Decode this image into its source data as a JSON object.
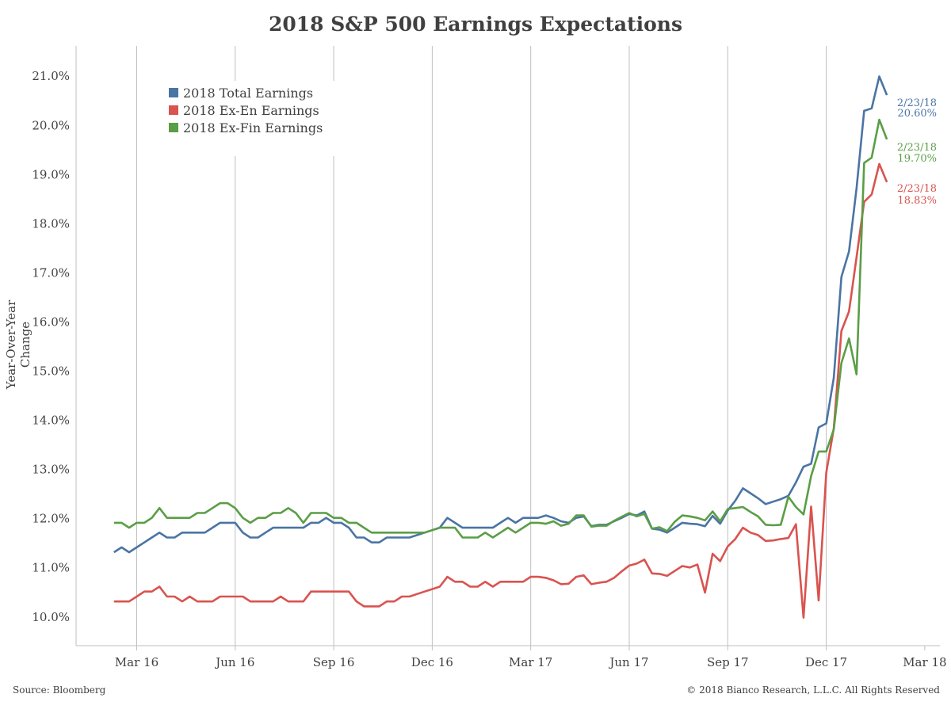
{
  "title": "2018 S&P 500 Earnings Expectations",
  "ylabel": "Year-Over-Year Change",
  "source": "Source: Bloomberg",
  "copyright": "© 2018 Bianco Research, L.L.C. All Rights Reserved",
  "colors": {
    "total": "#4a74a4",
    "exen": "#d9534f",
    "exfin": "#5a9e46"
  },
  "chart_data": {
    "type": "line",
    "ylim": [
      9.4,
      21.6
    ],
    "y_ticks": [
      "10.0%",
      "11.0%",
      "12.0%",
      "13.0%",
      "14.0%",
      "15.0%",
      "16.0%",
      "17.0%",
      "18.0%",
      "19.0%",
      "20.0%",
      "21.0%"
    ],
    "y_tick_values": [
      10,
      11,
      12,
      13,
      14,
      15,
      16,
      17,
      18,
      19,
      20,
      21
    ],
    "x_ticks": [
      "Mar 16",
      "Jun 16",
      "Sep 16",
      "Dec 16",
      "Mar 17",
      "Jun 17",
      "Sep 17",
      "Dec 17",
      "Mar 18"
    ],
    "x_tick_values": [
      0,
      13,
      26,
      39,
      52,
      65,
      78,
      91,
      104
    ],
    "xlim": [
      -8,
      106
    ],
    "grid": "vertical",
    "legend_placement": "top-left",
    "x_step": "weekly",
    "series": [
      {
        "name": "2018 Total Earnings",
        "color_key": "total",
        "end_label_date": "2/23/18",
        "end_label_value": "20.60%",
        "points": [
          [
            -3,
            11.3
          ],
          [
            -2,
            11.4
          ],
          [
            -1,
            11.3
          ],
          [
            0,
            11.4
          ],
          [
            1,
            11.5
          ],
          [
            2,
            11.6
          ],
          [
            3,
            11.7
          ],
          [
            4,
            11.6
          ],
          [
            5,
            11.6
          ],
          [
            6,
            11.7
          ],
          [
            7,
            11.7
          ],
          [
            8,
            11.7
          ],
          [
            9,
            11.7
          ],
          [
            10,
            11.8
          ],
          [
            11,
            11.9
          ],
          [
            12,
            11.9
          ],
          [
            13,
            11.9
          ],
          [
            14,
            11.7
          ],
          [
            15,
            11.6
          ],
          [
            16,
            11.6
          ],
          [
            17,
            11.7
          ],
          [
            18,
            11.8
          ],
          [
            19,
            11.8
          ],
          [
            20,
            11.8
          ],
          [
            21,
            11.8
          ],
          [
            22,
            11.8
          ],
          [
            23,
            11.9
          ],
          [
            24,
            11.9
          ],
          [
            25,
            12.0
          ],
          [
            26,
            11.9
          ],
          [
            27,
            11.9
          ],
          [
            28,
            11.8
          ],
          [
            29,
            11.6
          ],
          [
            30,
            11.6
          ],
          [
            31,
            11.5
          ],
          [
            32,
            11.5
          ],
          [
            33,
            11.6
          ],
          [
            34,
            11.6
          ],
          [
            35,
            11.6
          ],
          [
            36,
            11.6
          ],
          [
            37,
            11.65
          ],
          [
            38,
            11.7
          ],
          [
            39,
            11.75
          ],
          [
            40,
            11.8
          ],
          [
            41,
            12.0
          ],
          [
            42,
            11.9
          ],
          [
            43,
            11.8
          ],
          [
            44,
            11.8
          ],
          [
            45,
            11.8
          ],
          [
            46,
            11.8
          ],
          [
            47,
            11.8
          ],
          [
            48,
            11.9
          ],
          [
            49,
            12.0
          ],
          [
            50,
            11.9
          ],
          [
            51,
            12.0
          ],
          [
            52,
            12.0
          ],
          [
            53,
            12.0
          ],
          [
            54,
            12.05
          ],
          [
            55,
            12.0
          ],
          [
            56,
            11.93
          ],
          [
            57,
            11.9
          ],
          [
            58,
            12.0
          ],
          [
            59,
            12.03
          ],
          [
            60,
            11.83
          ],
          [
            61,
            11.86
          ],
          [
            62,
            11.86
          ],
          [
            63,
            11.93
          ],
          [
            64,
            12.0
          ],
          [
            65,
            12.08
          ],
          [
            66,
            12.05
          ],
          [
            67,
            12.13
          ],
          [
            68,
            11.78
          ],
          [
            69,
            11.76
          ],
          [
            70,
            11.7
          ],
          [
            71,
            11.8
          ],
          [
            72,
            11.9
          ],
          [
            73,
            11.88
          ],
          [
            74,
            11.87
          ],
          [
            75,
            11.83
          ],
          [
            76,
            12.04
          ],
          [
            77,
            11.88
          ],
          [
            78,
            12.15
          ],
          [
            79,
            12.35
          ],
          [
            80,
            12.6
          ],
          [
            81,
            12.5
          ],
          [
            82,
            12.4
          ],
          [
            83,
            12.28
          ],
          [
            84,
            12.33
          ],
          [
            85,
            12.38
          ],
          [
            86,
            12.45
          ],
          [
            87,
            12.72
          ],
          [
            88,
            13.04
          ],
          [
            89,
            13.1
          ],
          [
            90,
            13.84
          ],
          [
            91,
            13.92
          ],
          [
            92,
            14.85
          ],
          [
            93,
            16.9
          ],
          [
            94,
            17.42
          ],
          [
            95,
            18.7
          ],
          [
            96,
            20.28
          ],
          [
            97,
            20.33
          ],
          [
            98,
            20.98
          ],
          [
            99,
            20.6
          ]
        ]
      },
      {
        "name": "2018 Ex-En Earnings",
        "color_key": "exen",
        "end_label_date": "2/23/18",
        "end_label_value": "18.83%",
        "points": [
          [
            -3,
            10.3
          ],
          [
            -2,
            10.3
          ],
          [
            -1,
            10.3
          ],
          [
            0,
            10.4
          ],
          [
            1,
            10.5
          ],
          [
            2,
            10.5
          ],
          [
            3,
            10.6
          ],
          [
            4,
            10.4
          ],
          [
            5,
            10.4
          ],
          [
            6,
            10.3
          ],
          [
            7,
            10.4
          ],
          [
            8,
            10.3
          ],
          [
            9,
            10.3
          ],
          [
            10,
            10.3
          ],
          [
            11,
            10.4
          ],
          [
            12,
            10.4
          ],
          [
            13,
            10.4
          ],
          [
            14,
            10.4
          ],
          [
            15,
            10.3
          ],
          [
            16,
            10.3
          ],
          [
            17,
            10.3
          ],
          [
            18,
            10.3
          ],
          [
            19,
            10.4
          ],
          [
            20,
            10.3
          ],
          [
            21,
            10.3
          ],
          [
            22,
            10.3
          ],
          [
            23,
            10.5
          ],
          [
            24,
            10.5
          ],
          [
            25,
            10.5
          ],
          [
            26,
            10.5
          ],
          [
            27,
            10.5
          ],
          [
            28,
            10.5
          ],
          [
            29,
            10.3
          ],
          [
            30,
            10.2
          ],
          [
            31,
            10.2
          ],
          [
            32,
            10.2
          ],
          [
            33,
            10.3
          ],
          [
            34,
            10.3
          ],
          [
            35,
            10.4
          ],
          [
            36,
            10.4
          ],
          [
            37,
            10.45
          ],
          [
            38,
            10.5
          ],
          [
            39,
            10.55
          ],
          [
            40,
            10.6
          ],
          [
            41,
            10.8
          ],
          [
            42,
            10.7
          ],
          [
            43,
            10.7
          ],
          [
            44,
            10.6
          ],
          [
            45,
            10.6
          ],
          [
            46,
            10.7
          ],
          [
            47,
            10.6
          ],
          [
            48,
            10.7
          ],
          [
            49,
            10.7
          ],
          [
            50,
            10.7
          ],
          [
            51,
            10.7
          ],
          [
            52,
            10.8
          ],
          [
            53,
            10.8
          ],
          [
            54,
            10.78
          ],
          [
            55,
            10.73
          ],
          [
            56,
            10.65
          ],
          [
            57,
            10.66
          ],
          [
            58,
            10.8
          ],
          [
            59,
            10.83
          ],
          [
            60,
            10.65
          ],
          [
            61,
            10.68
          ],
          [
            62,
            10.7
          ],
          [
            63,
            10.78
          ],
          [
            64,
            10.91
          ],
          [
            65,
            11.03
          ],
          [
            66,
            11.07
          ],
          [
            67,
            11.15
          ],
          [
            68,
            10.87
          ],
          [
            69,
            10.86
          ],
          [
            70,
            10.82
          ],
          [
            71,
            10.92
          ],
          [
            72,
            11.02
          ],
          [
            73,
            10.99
          ],
          [
            74,
            11.05
          ],
          [
            75,
            10.48
          ],
          [
            76,
            11.27
          ],
          [
            77,
            11.12
          ],
          [
            78,
            11.42
          ],
          [
            79,
            11.57
          ],
          [
            80,
            11.8
          ],
          [
            81,
            11.7
          ],
          [
            82,
            11.65
          ],
          [
            83,
            11.53
          ],
          [
            84,
            11.54
          ],
          [
            85,
            11.57
          ],
          [
            86,
            11.59
          ],
          [
            87,
            11.87
          ],
          [
            88,
            9.97
          ],
          [
            89,
            12.23
          ],
          [
            90,
            10.32
          ],
          [
            91,
            12.92
          ],
          [
            92,
            13.82
          ],
          [
            93,
            15.8
          ],
          [
            94,
            16.2
          ],
          [
            95,
            17.3
          ],
          [
            96,
            18.43
          ],
          [
            97,
            18.58
          ],
          [
            98,
            19.2
          ],
          [
            99,
            18.83
          ]
        ]
      },
      {
        "name": "2018 Ex-Fin Earnings",
        "color_key": "exfin",
        "end_label_date": "2/23/18",
        "end_label_value": "19.70%",
        "points": [
          [
            -3,
            11.9
          ],
          [
            -2,
            11.9
          ],
          [
            -1,
            11.8
          ],
          [
            0,
            11.9
          ],
          [
            1,
            11.9
          ],
          [
            2,
            12.0
          ],
          [
            3,
            12.2
          ],
          [
            4,
            12.0
          ],
          [
            5,
            12.0
          ],
          [
            6,
            12.0
          ],
          [
            7,
            12.0
          ],
          [
            8,
            12.1
          ],
          [
            9,
            12.1
          ],
          [
            10,
            12.2
          ],
          [
            11,
            12.3
          ],
          [
            12,
            12.3
          ],
          [
            13,
            12.2
          ],
          [
            14,
            12.0
          ],
          [
            15,
            11.9
          ],
          [
            16,
            12.0
          ],
          [
            17,
            12.0
          ],
          [
            18,
            12.1
          ],
          [
            19,
            12.1
          ],
          [
            20,
            12.2
          ],
          [
            21,
            12.1
          ],
          [
            22,
            11.9
          ],
          [
            23,
            12.1
          ],
          [
            24,
            12.1
          ],
          [
            25,
            12.1
          ],
          [
            26,
            12.0
          ],
          [
            27,
            12.0
          ],
          [
            28,
            11.9
          ],
          [
            29,
            11.9
          ],
          [
            30,
            11.8
          ],
          [
            31,
            11.7
          ],
          [
            32,
            11.7
          ],
          [
            33,
            11.7
          ],
          [
            34,
            11.7
          ],
          [
            35,
            11.7
          ],
          [
            36,
            11.7
          ],
          [
            37,
            11.7
          ],
          [
            38,
            11.7
          ],
          [
            39,
            11.75
          ],
          [
            40,
            11.8
          ],
          [
            41,
            11.8
          ],
          [
            42,
            11.8
          ],
          [
            43,
            11.6
          ],
          [
            44,
            11.6
          ],
          [
            45,
            11.6
          ],
          [
            46,
            11.7
          ],
          [
            47,
            11.6
          ],
          [
            48,
            11.7
          ],
          [
            49,
            11.8
          ],
          [
            50,
            11.7
          ],
          [
            51,
            11.8
          ],
          [
            52,
            11.9
          ],
          [
            53,
            11.9
          ],
          [
            54,
            11.88
          ],
          [
            55,
            11.93
          ],
          [
            56,
            11.84
          ],
          [
            57,
            11.88
          ],
          [
            58,
            12.05
          ],
          [
            59,
            12.05
          ],
          [
            60,
            11.82
          ],
          [
            61,
            11.84
          ],
          [
            62,
            11.84
          ],
          [
            63,
            11.94
          ],
          [
            64,
            12.02
          ],
          [
            65,
            12.1
          ],
          [
            66,
            12.03
          ],
          [
            67,
            12.08
          ],
          [
            68,
            11.78
          ],
          [
            69,
            11.81
          ],
          [
            70,
            11.73
          ],
          [
            71,
            11.92
          ],
          [
            72,
            12.05
          ],
          [
            73,
            12.03
          ],
          [
            74,
            12.0
          ],
          [
            75,
            11.95
          ],
          [
            76,
            12.13
          ],
          [
            77,
            11.93
          ],
          [
            78,
            12.18
          ],
          [
            79,
            12.2
          ],
          [
            80,
            12.22
          ],
          [
            81,
            12.12
          ],
          [
            82,
            12.03
          ],
          [
            83,
            11.86
          ],
          [
            84,
            11.85
          ],
          [
            85,
            11.86
          ],
          [
            86,
            12.43
          ],
          [
            87,
            12.22
          ],
          [
            88,
            12.07
          ],
          [
            89,
            12.85
          ],
          [
            90,
            13.35
          ],
          [
            91,
            13.35
          ],
          [
            92,
            13.8
          ],
          [
            93,
            15.15
          ],
          [
            94,
            15.65
          ],
          [
            95,
            14.92
          ],
          [
            96,
            19.22
          ],
          [
            97,
            19.33
          ],
          [
            98,
            20.1
          ],
          [
            99,
            19.7
          ]
        ]
      }
    ]
  }
}
